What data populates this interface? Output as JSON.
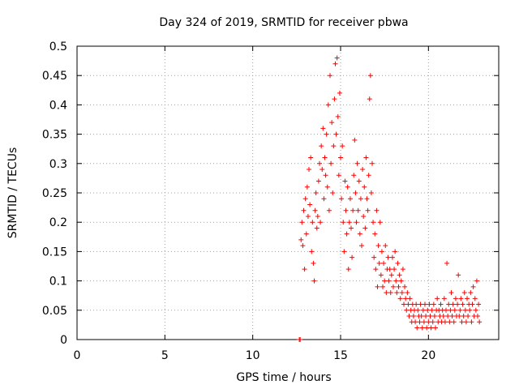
{
  "chart_data": {
    "type": "scatter",
    "title": "Day 324 of 2019, SRMTID for receiver pbwa",
    "xlabel": "GPS time / hours",
    "ylabel": "SRMTID / TECUs",
    "xlim": [
      0,
      24
    ],
    "ylim": [
      0,
      0.5
    ],
    "xticks": [
      0,
      5,
      10,
      15,
      20
    ],
    "xtick_labels": [
      "0",
      "5",
      "10",
      "15",
      "20"
    ],
    "yticks": [
      0,
      0.05,
      0.1,
      0.15,
      0.2,
      0.25,
      0.3,
      0.35,
      0.4,
      0.45,
      0.5
    ],
    "ytick_labels": [
      "0",
      "0.05",
      "0.1",
      "0.15",
      "0.2",
      "0.25",
      "0.3",
      "0.35",
      "0.4",
      "0.45",
      "0.5"
    ],
    "grid": true,
    "marker": "+",
    "series": [
      {
        "name": "SRMTID",
        "color": "#ff0000",
        "points": [
          [
            12.65,
            0.0
          ],
          [
            12.7,
            0.0
          ],
          [
            12.75,
            0.17
          ],
          [
            12.8,
            0.2
          ],
          [
            12.85,
            0.16
          ],
          [
            12.9,
            0.22
          ],
          [
            12.95,
            0.12
          ],
          [
            13.0,
            0.24
          ],
          [
            13.05,
            0.18
          ],
          [
            13.1,
            0.26
          ],
          [
            13.15,
            0.21
          ],
          [
            13.2,
            0.29
          ],
          [
            13.25,
            0.23
          ],
          [
            13.3,
            0.31
          ],
          [
            13.35,
            0.15
          ],
          [
            13.4,
            0.2
          ],
          [
            13.45,
            0.13
          ],
          [
            13.5,
            0.1
          ],
          [
            13.55,
            0.22
          ],
          [
            13.6,
            0.25
          ],
          [
            13.65,
            0.19
          ],
          [
            13.7,
            0.21
          ],
          [
            13.75,
            0.27
          ],
          [
            13.8,
            0.3
          ],
          [
            13.85,
            0.2
          ],
          [
            13.9,
            0.33
          ],
          [
            13.95,
            0.29
          ],
          [
            14.0,
            0.36
          ],
          [
            14.05,
            0.24
          ],
          [
            14.1,
            0.31
          ],
          [
            14.15,
            0.28
          ],
          [
            14.2,
            0.35
          ],
          [
            14.25,
            0.26
          ],
          [
            14.3,
            0.4
          ],
          [
            14.35,
            0.22
          ],
          [
            14.4,
            0.45
          ],
          [
            14.45,
            0.3
          ],
          [
            14.5,
            0.37
          ],
          [
            14.55,
            0.25
          ],
          [
            14.6,
            0.33
          ],
          [
            14.65,
            0.41
          ],
          [
            14.7,
            0.47
          ],
          [
            14.75,
            0.35
          ],
          [
            14.8,
            0.48
          ],
          [
            14.85,
            0.38
          ],
          [
            14.9,
            0.28
          ],
          [
            14.95,
            0.42
          ],
          [
            15.0,
            0.31
          ],
          [
            15.05,
            0.24
          ],
          [
            15.1,
            0.33
          ],
          [
            15.15,
            0.2
          ],
          [
            15.2,
            0.15
          ],
          [
            15.25,
            0.27
          ],
          [
            15.3,
            0.22
          ],
          [
            15.35,
            0.18
          ],
          [
            15.4,
            0.26
          ],
          [
            15.45,
            0.12
          ],
          [
            15.5,
            0.2
          ],
          [
            15.55,
            0.24
          ],
          [
            15.6,
            0.19
          ],
          [
            15.65,
            0.14
          ],
          [
            15.7,
            0.22
          ],
          [
            15.75,
            0.28
          ],
          [
            15.8,
            0.34
          ],
          [
            15.85,
            0.25
          ],
          [
            15.9,
            0.2
          ],
          [
            15.95,
            0.3
          ],
          [
            16.0,
            0.22
          ],
          [
            16.05,
            0.27
          ],
          [
            16.1,
            0.18
          ],
          [
            16.15,
            0.24
          ],
          [
            16.2,
            0.16
          ],
          [
            16.25,
            0.29
          ],
          [
            16.3,
            0.21
          ],
          [
            16.35,
            0.26
          ],
          [
            16.4,
            0.19
          ],
          [
            16.45,
            0.31
          ],
          [
            16.5,
            0.24
          ],
          [
            16.55,
            0.22
          ],
          [
            16.6,
            0.28
          ],
          [
            16.65,
            0.41
          ],
          [
            16.7,
            0.45
          ],
          [
            16.75,
            0.25
          ],
          [
            16.8,
            0.3
          ],
          [
            16.85,
            0.2
          ],
          [
            16.9,
            0.14
          ],
          [
            16.95,
            0.18
          ],
          [
            17.0,
            0.12
          ],
          [
            17.05,
            0.22
          ],
          [
            17.1,
            0.09
          ],
          [
            17.15,
            0.16
          ],
          [
            17.2,
            0.13
          ],
          [
            17.25,
            0.2
          ],
          [
            17.3,
            0.11
          ],
          [
            17.35,
            0.15
          ],
          [
            17.4,
            0.09
          ],
          [
            17.45,
            0.13
          ],
          [
            17.5,
            0.1
          ],
          [
            17.55,
            0.16
          ],
          [
            17.6,
            0.08
          ],
          [
            17.65,
            0.12
          ],
          [
            17.7,
            0.14
          ],
          [
            17.75,
            0.1
          ],
          [
            17.8,
            0.12
          ],
          [
            17.85,
            0.08
          ],
          [
            17.9,
            0.11
          ],
          [
            17.95,
            0.14
          ],
          [
            18.0,
            0.09
          ],
          [
            18.05,
            0.12
          ],
          [
            18.1,
            0.15
          ],
          [
            18.15,
            0.1
          ],
          [
            18.2,
            0.08
          ],
          [
            18.25,
            0.13
          ],
          [
            18.3,
            0.09
          ],
          [
            18.35,
            0.11
          ],
          [
            18.4,
            0.07
          ],
          [
            18.45,
            0.1
          ],
          [
            18.5,
            0.08
          ],
          [
            18.55,
            0.12
          ],
          [
            18.6,
            0.06
          ],
          [
            18.65,
            0.09
          ],
          [
            18.7,
            0.07
          ],
          [
            18.75,
            0.05
          ],
          [
            18.8,
            0.08
          ],
          [
            18.85,
            0.06
          ],
          [
            18.9,
            0.04
          ],
          [
            18.95,
            0.07
          ],
          [
            19.0,
            0.05
          ],
          [
            19.05,
            0.03
          ],
          [
            19.1,
            0.06
          ],
          [
            19.15,
            0.04
          ],
          [
            19.2,
            0.05
          ],
          [
            19.25,
            0.03
          ],
          [
            19.3,
            0.06
          ],
          [
            19.35,
            0.02
          ],
          [
            19.4,
            0.05
          ],
          [
            19.45,
            0.04
          ],
          [
            19.5,
            0.03
          ],
          [
            19.55,
            0.06
          ],
          [
            19.6,
            0.04
          ],
          [
            19.65,
            0.02
          ],
          [
            19.7,
            0.05
          ],
          [
            19.75,
            0.03
          ],
          [
            19.8,
            0.06
          ],
          [
            19.85,
            0.04
          ],
          [
            19.9,
            0.02
          ],
          [
            19.95,
            0.05
          ],
          [
            20.0,
            0.03
          ],
          [
            20.05,
            0.06
          ],
          [
            20.1,
            0.04
          ],
          [
            20.15,
            0.02
          ],
          [
            20.2,
            0.05
          ],
          [
            20.25,
            0.03
          ],
          [
            20.3,
            0.06
          ],
          [
            20.35,
            0.04
          ],
          [
            20.4,
            0.02
          ],
          [
            20.45,
            0.05
          ],
          [
            20.5,
            0.07
          ],
          [
            20.55,
            0.03
          ],
          [
            20.6,
            0.05
          ],
          [
            20.65,
            0.04
          ],
          [
            20.7,
            0.06
          ],
          [
            20.75,
            0.03
          ],
          [
            20.8,
            0.05
          ],
          [
            20.85,
            0.04
          ],
          [
            20.9,
            0.07
          ],
          [
            20.95,
            0.03
          ],
          [
            21.0,
            0.05
          ],
          [
            21.05,
            0.13
          ],
          [
            21.1,
            0.04
          ],
          [
            21.15,
            0.06
          ],
          [
            21.2,
            0.03
          ],
          [
            21.25,
            0.05
          ],
          [
            21.3,
            0.08
          ],
          [
            21.35,
            0.04
          ],
          [
            21.4,
            0.06
          ],
          [
            21.45,
            0.03
          ],
          [
            21.5,
            0.05
          ],
          [
            21.55,
            0.07
          ],
          [
            21.6,
            0.04
          ],
          [
            21.65,
            0.06
          ],
          [
            21.7,
            0.11
          ],
          [
            21.75,
            0.04
          ],
          [
            21.8,
            0.05
          ],
          [
            21.85,
            0.07
          ],
          [
            21.9,
            0.03
          ],
          [
            21.95,
            0.06
          ],
          [
            22.0,
            0.04
          ],
          [
            22.05,
            0.08
          ],
          [
            22.1,
            0.05
          ],
          [
            22.15,
            0.03
          ],
          [
            22.2,
            0.07
          ],
          [
            22.25,
            0.04
          ],
          [
            22.3,
            0.06
          ],
          [
            22.35,
            0.05
          ],
          [
            22.4,
            0.08
          ],
          [
            22.45,
            0.03
          ],
          [
            22.5,
            0.06
          ],
          [
            22.55,
            0.09
          ],
          [
            22.6,
            0.04
          ],
          [
            22.65,
            0.07
          ],
          [
            22.7,
            0.05
          ],
          [
            22.75,
            0.1
          ],
          [
            22.8,
            0.04
          ],
          [
            22.85,
            0.06
          ],
          [
            22.9,
            0.03
          ]
        ]
      }
    ]
  }
}
